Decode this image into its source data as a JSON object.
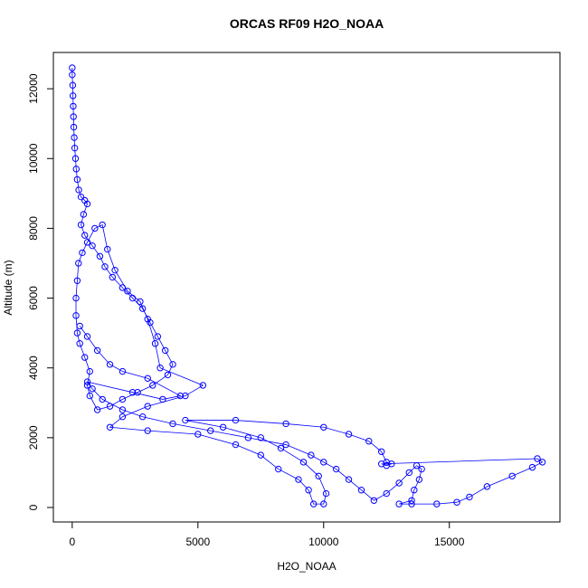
{
  "chart_data": {
    "type": "scatter",
    "title": "ORCAS RF09 H2O_NOAA",
    "xlabel": "H2O_NOAA",
    "ylabel": "Altitude (m)",
    "xlim": [
      -750,
      19400
    ],
    "ylim": [
      -415,
      13040
    ],
    "xticks": [
      0,
      5000,
      10000,
      15000
    ],
    "yticks": [
      0,
      2000,
      4000,
      6000,
      8000,
      10000,
      12000
    ],
    "series": [
      {
        "name": "H2O_NOAA",
        "color": "#0000ff",
        "x": [
          0,
          0,
          20,
          30,
          40,
          50,
          60,
          80,
          100,
          130,
          160,
          200,
          260,
          350,
          500,
          600,
          450,
          350,
          500,
          800,
          1100,
          1300,
          1600,
          2000,
          2400,
          2800,
          3100,
          3400,
          3700,
          4000,
          3800,
          3200,
          2600,
          2000,
          1500,
          1000,
          700,
          600,
          700,
          500,
          300,
          200,
          150,
          150,
          200,
          250,
          400,
          600,
          900,
          1200,
          1400,
          1700,
          2200,
          2700,
          3000,
          3300,
          3500,
          5200,
          4500,
          3000,
          2000,
          1500,
          3000,
          5000,
          6500,
          7500,
          8200,
          9000,
          9400,
          9600,
          10000,
          10100,
          9800,
          9200,
          8300,
          7500,
          6000,
          4500,
          6500,
          8500,
          10000,
          11000,
          11800,
          12300,
          12500,
          12700,
          12500,
          12300,
          18500,
          18700,
          18300,
          17500,
          16500,
          15800,
          15300,
          14500,
          13500,
          13000,
          13500,
          13600,
          13800,
          13900,
          13700,
          13400,
          13000,
          12500,
          12000,
          11500,
          11000,
          10500,
          10000,
          9500,
          8500,
          7000,
          5500,
          4000,
          2800,
          2000,
          1200,
          800,
          600,
          2400,
          3600,
          4300,
          3000,
          2000,
          1500,
          1000,
          600,
          300
        ],
        "values": [
          12600,
          12400,
          12100,
          11800,
          11500,
          11200,
          10900,
          10600,
          10300,
          10000,
          9700,
          9400,
          9100,
          8900,
          8800,
          8700,
          8400,
          8100,
          7800,
          7500,
          7200,
          6900,
          6600,
          6300,
          6000,
          5700,
          5300,
          4900,
          4500,
          4100,
          3800,
          3500,
          3300,
          3100,
          2900,
          2800,
          3200,
          3500,
          3900,
          4300,
          4700,
          5000,
          5500,
          6000,
          6500,
          7000,
          7300,
          7600,
          8000,
          8100,
          7400,
          6800,
          6200,
          5900,
          5400,
          4700,
          4000,
          3500,
          3200,
          2900,
          2600,
          2300,
          2200,
          2100,
          1800,
          1500,
          1100,
          800,
          500,
          100,
          100,
          400,
          900,
          1300,
          1700,
          2000,
          2300,
          2500,
          2500,
          2400,
          2300,
          2100,
          1900,
          1600,
          1300,
          1250,
          1200,
          1250,
          1400,
          1300,
          1150,
          900,
          600,
          300,
          150,
          100,
          100,
          100,
          200,
          500,
          800,
          1100,
          1200,
          1000,
          700,
          400,
          200,
          500,
          800,
          1100,
          1300,
          1500,
          1800,
          2000,
          2200,
          2400,
          2600,
          2800,
          3100,
          3400,
          3600,
          3300,
          3100,
          3200,
          3700,
          3900,
          4100,
          4500,
          4900,
          5200
        ]
      }
    ]
  }
}
